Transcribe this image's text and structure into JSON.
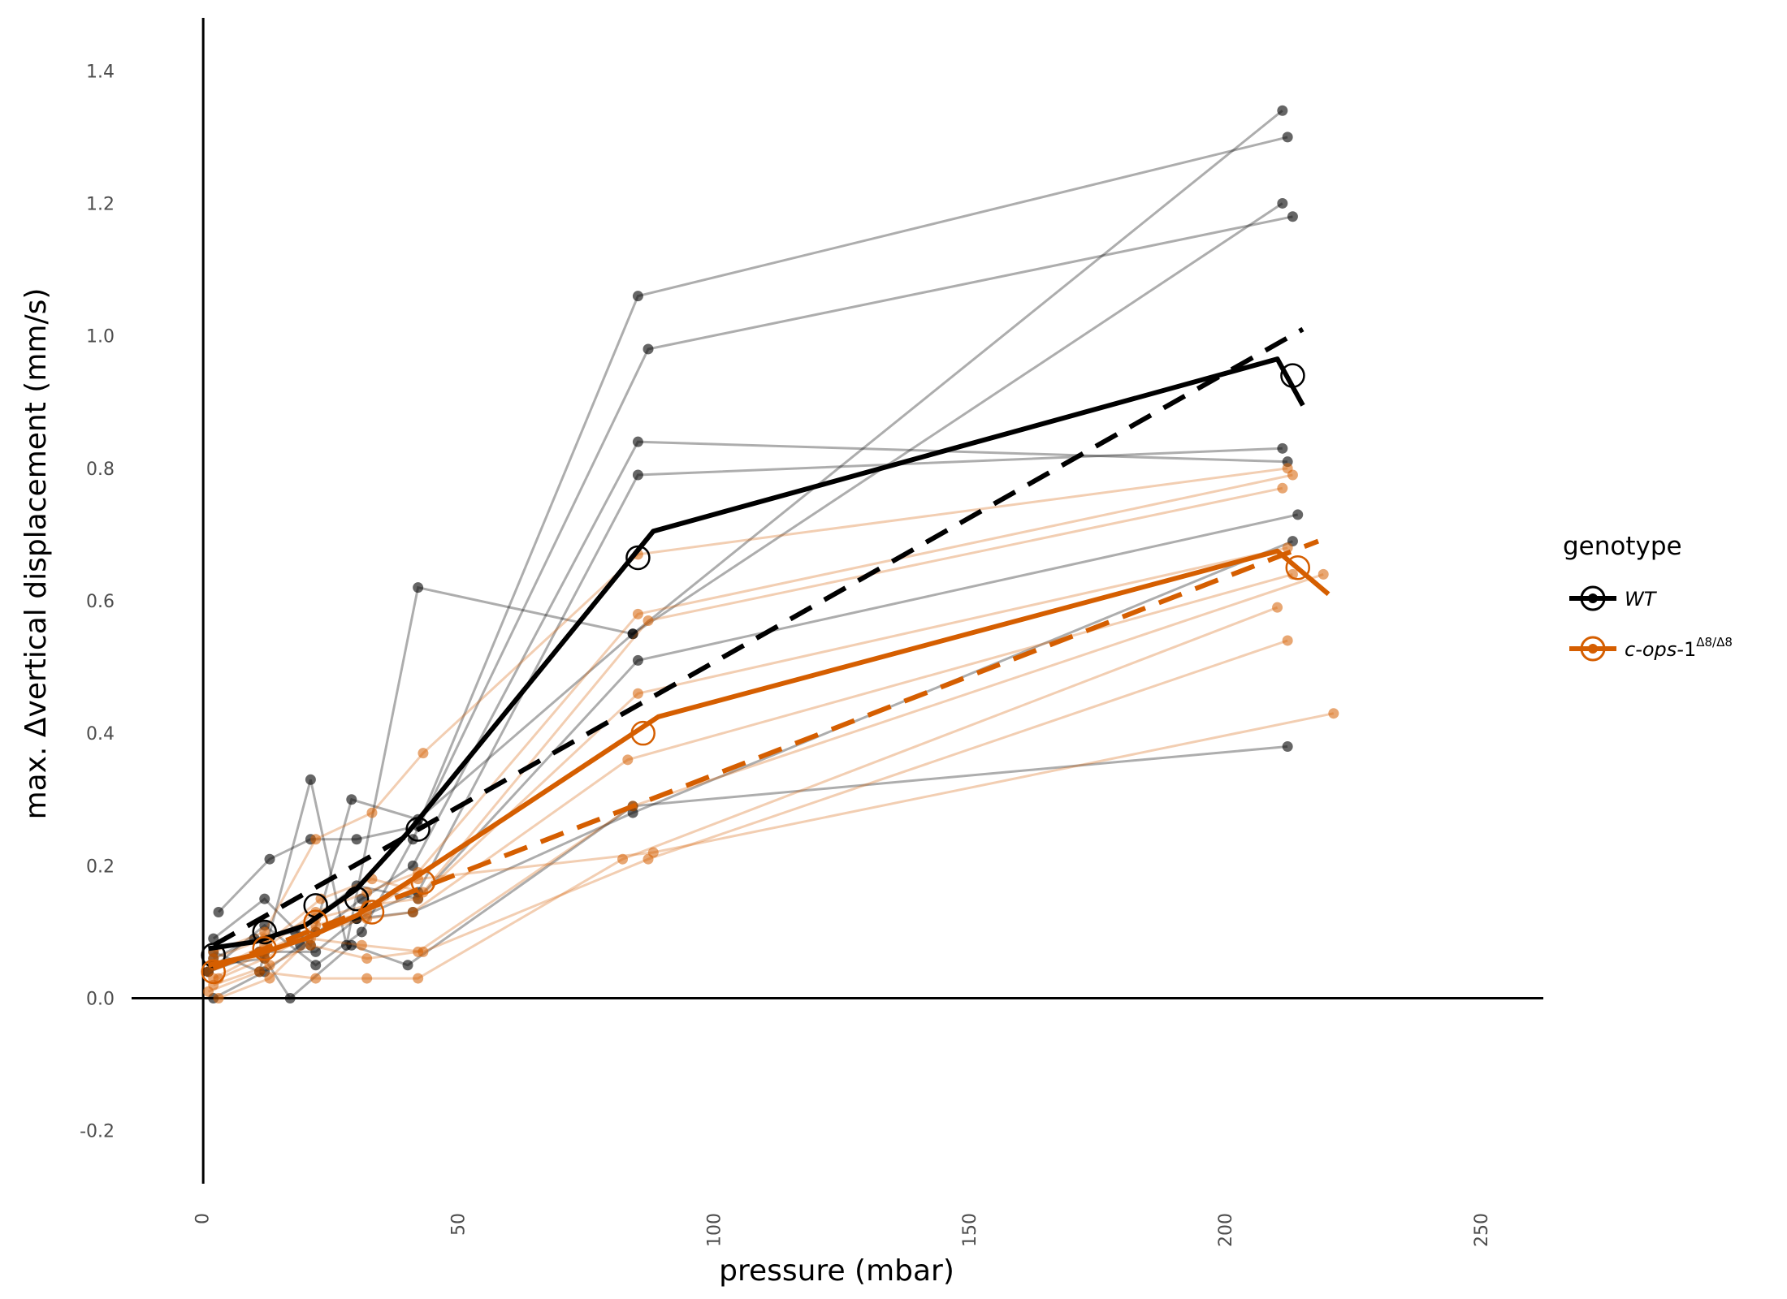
{
  "chart_data": {
    "type": "line",
    "title": "",
    "xlabel": "pressure (mbar)",
    "ylabel": "max. Δvertical displacement (mm/s)",
    "xlim": [
      -14,
      262
    ],
    "ylim": [
      -0.28,
      1.48
    ],
    "xticks": [
      0,
      50,
      100,
      150,
      200,
      250
    ],
    "xtick_labels": [
      "0",
      "50",
      "100",
      "150",
      "200",
      "250"
    ],
    "yticks": [
      -0.2,
      0.0,
      0.2,
      0.4,
      0.6,
      0.8,
      1.0,
      1.2,
      1.4
    ],
    "ytick_labels": [
      "-0.2",
      "0.0",
      "0.2",
      "0.4",
      "0.6",
      "0.8",
      "1.0",
      "1.2",
      "1.4"
    ],
    "grid": false,
    "legend": {
      "title": "genotype",
      "position": "right",
      "entries": [
        {
          "key": "wt",
          "label": "WT",
          "color": "#000000"
        },
        {
          "key": "cops",
          "label_main": "c-ops-",
          "label_num": "1",
          "label_sup": "Δ8/Δ8",
          "color": "#d55e00"
        }
      ]
    },
    "series": [
      {
        "name": "WT",
        "color": "#000000",
        "individual_traces": [
          [
            [
              2,
              0.09
            ],
            [
              12,
              0.15
            ],
            [
              21,
              0.08
            ],
            [
              29,
              0.3
            ],
            [
              42,
              0.27
            ],
            [
              84,
              0.55
            ],
            [
              211,
              1.34
            ]
          ],
          [
            [
              3,
              0.13
            ],
            [
              13,
              0.21
            ],
            [
              21,
              0.24
            ],
            [
              30,
              0.24
            ],
            [
              42,
              0.26
            ],
            [
              85,
              1.06
            ],
            [
              212,
              1.3
            ]
          ],
          [
            [
              2,
              0.07
            ],
            [
              11,
              0.04
            ],
            [
              21,
              0.33
            ],
            [
              28,
              0.08
            ],
            [
              42,
              0.62
            ],
            [
              84,
              0.55
            ],
            [
              211,
              1.2
            ]
          ],
          [
            [
              1,
              0.04
            ],
            [
              12,
              0.11
            ],
            [
              22,
              0.05
            ],
            [
              31,
              0.1
            ],
            [
              41,
              0.24
            ],
            [
              87,
              0.98
            ],
            [
              213,
              1.18
            ]
          ],
          [
            [
              2,
              0.0
            ],
            [
              12,
              0.04
            ],
            [
              19,
              0.08
            ],
            [
              31,
              0.15
            ],
            [
              41,
              0.2
            ],
            [
              85,
              0.84
            ],
            [
              212,
              0.81
            ]
          ],
          [
            [
              2,
              0.05
            ],
            [
              11,
              0.07
            ],
            [
              22,
              0.07
            ],
            [
              30,
              0.12
            ],
            [
              42,
              0.16
            ],
            [
              85,
              0.79
            ],
            [
              211,
              0.83
            ]
          ],
          [
            [
              2,
              0.06
            ],
            [
              10,
              0.09
            ],
            [
              18,
              0.1
            ],
            [
              30,
              0.17
            ],
            [
              42,
              0.15
            ],
            [
              85,
              0.51
            ],
            [
              214,
              0.73
            ]
          ],
          [
            [
              1,
              0.04
            ],
            [
              12,
              0.07
            ],
            [
              22,
              0.1
            ],
            [
              30,
              0.12
            ],
            [
              41,
              0.13
            ],
            [
              84,
              0.28
            ],
            [
              213,
              0.69
            ]
          ],
          [
            [
              2,
              0.05
            ],
            [
              12,
              0.06
            ],
            [
              17,
              0.0
            ],
            [
              29,
              0.08
            ],
            [
              40,
              0.05
            ],
            [
              84,
              0.29
            ],
            [
              212,
              0.38
            ]
          ]
        ],
        "mean_points": [
          [
            2,
            0.065
          ],
          [
            12,
            0.1
          ],
          [
            22,
            0.14
          ],
          [
            30,
            0.15
          ],
          [
            42,
            0.255
          ],
          [
            85,
            0.665
          ],
          [
            213,
            0.94
          ]
        ],
        "smooth_curve": [
          [
            1,
            0.075
          ],
          [
            10,
            0.085
          ],
          [
            20,
            0.11
          ],
          [
            30,
            0.165
          ],
          [
            40,
            0.25
          ],
          [
            88,
            0.705
          ],
          [
            210,
            0.965
          ],
          [
            215,
            0.895
          ]
        ],
        "linear_fit": [
          [
            2,
            0.08
          ],
          [
            215,
            1.01
          ]
        ]
      },
      {
        "name": "c-ops-1 Δ8/Δ8",
        "color": "#d55e00",
        "individual_traces": [
          [
            [
              2,
              0.07
            ],
            [
              12,
              0.1
            ],
            [
              22,
              0.24
            ],
            [
              33,
              0.28
            ],
            [
              43,
              0.37
            ],
            [
              85,
              0.67
            ],
            [
              212,
              0.8
            ]
          ],
          [
            [
              2,
              0.05
            ],
            [
              11,
              0.07
            ],
            [
              22,
              0.13
            ],
            [
              32,
              0.16
            ],
            [
              42,
              0.19
            ],
            [
              85,
              0.58
            ],
            [
              213,
              0.79
            ]
          ],
          [
            [
              1,
              0.04
            ],
            [
              12,
              0.08
            ],
            [
              23,
              0.15
            ],
            [
              33,
              0.18
            ],
            [
              43,
              0.16
            ],
            [
              87,
              0.57
            ],
            [
              211,
              0.77
            ]
          ],
          [
            [
              2,
              0.06
            ],
            [
              12,
              0.09
            ],
            [
              22,
              0.12
            ],
            [
              32,
              0.14
            ],
            [
              42,
              0.15
            ],
            [
              85,
              0.46
            ],
            [
              212,
              0.68
            ]
          ],
          [
            [
              3,
              0.03
            ],
            [
              12,
              0.06
            ],
            [
              22,
              0.1
            ],
            [
              32,
              0.12
            ],
            [
              41,
              0.13
            ],
            [
              83,
              0.36
            ],
            [
              213,
              0.64
            ]
          ],
          [
            [
              2,
              0.02
            ],
            [
              13,
              0.05
            ],
            [
              21,
              0.08
            ],
            [
              32,
              0.06
            ],
            [
              42,
              0.07
            ],
            [
              84,
              0.29
            ],
            [
              219,
              0.64
            ]
          ],
          [
            [
              1,
              0.01
            ],
            [
              11,
              0.04
            ],
            [
              22,
              0.03
            ],
            [
              32,
              0.03
            ],
            [
              42,
              0.03
            ],
            [
              82,
              0.21
            ],
            [
              210,
              0.59
            ]
          ],
          [
            [
              3,
              0.0
            ],
            [
              13,
              0.03
            ],
            [
              21,
              0.09
            ],
            [
              31,
              0.08
            ],
            [
              43,
              0.07
            ],
            [
              87,
              0.21
            ],
            [
              212,
              0.54
            ]
          ],
          [
            [
              2,
              0.03
            ],
            [
              12,
              0.07
            ],
            [
              22,
              0.11
            ],
            [
              32,
              0.13
            ],
            [
              42,
              0.18
            ],
            [
              88,
              0.22
            ],
            [
              221,
              0.43
            ]
          ]
        ],
        "mean_points": [
          [
            2,
            0.04
          ],
          [
            12,
            0.075
          ],
          [
            22,
            0.115
          ],
          [
            33,
            0.13
          ],
          [
            43,
            0.175
          ],
          [
            86,
            0.4
          ],
          [
            214,
            0.65
          ]
        ],
        "smooth_curve": [
          [
            1,
            0.05
          ],
          [
            10,
            0.065
          ],
          [
            20,
            0.09
          ],
          [
            30,
            0.125
          ],
          [
            40,
            0.175
          ],
          [
            89,
            0.425
          ],
          [
            210,
            0.675
          ],
          [
            220,
            0.61
          ]
        ],
        "linear_fit": [
          [
            2,
            0.045
          ],
          [
            218,
            0.69
          ]
        ]
      }
    ]
  }
}
